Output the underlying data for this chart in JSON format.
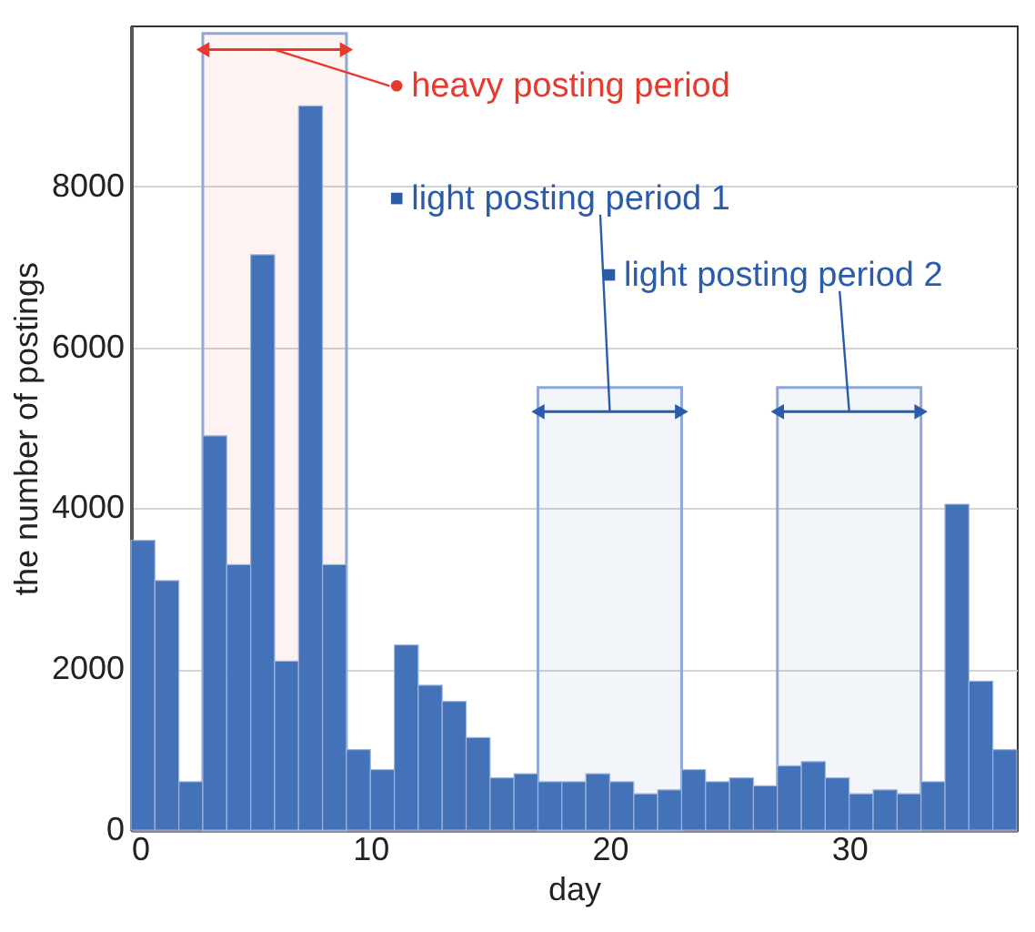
{
  "chart_data": {
    "type": "histogram",
    "xlabel": "day",
    "ylabel": "the number of postings",
    "bins": [
      0,
      1,
      2,
      3,
      4,
      5,
      6,
      7,
      8,
      9,
      10,
      11,
      12,
      13,
      14,
      15,
      16,
      17,
      18,
      19,
      20,
      21,
      22,
      23,
      24,
      25,
      26,
      27,
      28,
      29,
      30,
      31,
      32,
      33,
      34,
      35,
      36,
      37
    ],
    "values": [
      3600,
      3100,
      600,
      4900,
      3300,
      7150,
      2100,
      9000,
      3300,
      1000,
      750,
      2300,
      1800,
      1600,
      1150,
      650,
      700,
      600,
      600,
      700,
      600,
      450,
      500,
      750,
      600,
      650,
      550,
      800,
      850,
      650,
      450,
      500,
      450,
      600,
      4050,
      1850,
      1000
    ],
    "color": "#4372b8",
    "xlim": [
      0,
      37
    ],
    "xticks": [
      0,
      10,
      20,
      30
    ],
    "ylim": [
      0,
      10000
    ],
    "yticks": [
      0,
      2000,
      4000,
      6000,
      8000
    ],
    "grid": "y",
    "legend": "top right",
    "bands": [
      {
        "axis": "x",
        "from": 3,
        "to": 9,
        "label": "heavy posting period",
        "color": "#e8392d"
      },
      {
        "axis": "x",
        "from": 17,
        "to": 23,
        "label": "light posting period 1",
        "color": "#2a5caa"
      },
      {
        "axis": "x",
        "from": 27,
        "to": 33,
        "label": "light posting period 2",
        "color": "#2a5caa"
      }
    ]
  }
}
